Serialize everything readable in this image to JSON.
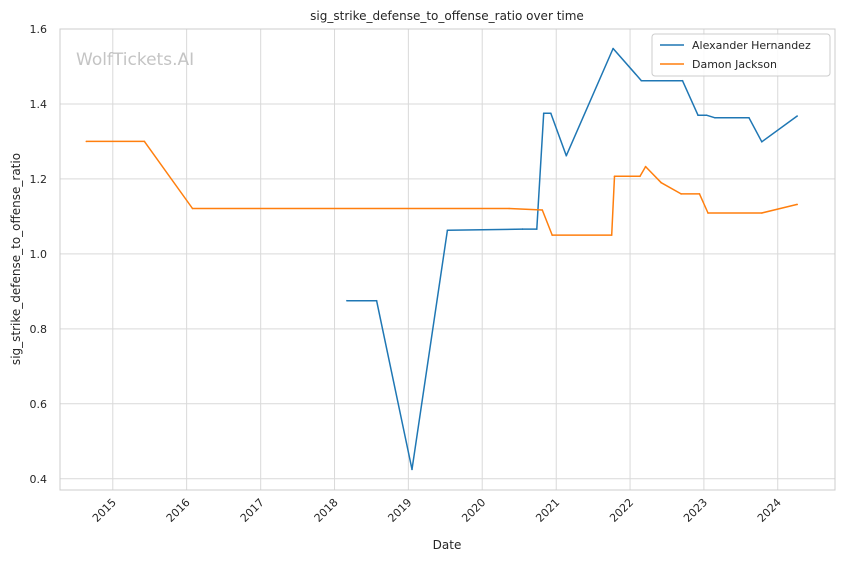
{
  "chart_data": {
    "type": "line",
    "title": "sig_strike_defense_to_offense_ratio over time",
    "xlabel": "Date",
    "ylabel": "sig_strike_defense_to_offense_ratio",
    "watermark": "WolfTickets.AI",
    "x_ticks": [
      "2015",
      "2016",
      "2017",
      "2018",
      "2019",
      "2020",
      "2021",
      "2022",
      "2023",
      "2024"
    ],
    "y_ticks": [
      "0.4",
      "0.6",
      "0.8",
      "1.0",
      "1.2",
      "1.4",
      "1.6"
    ],
    "ylim": [
      0.37,
      1.6
    ],
    "xlim": [
      "2014-04-15",
      "2024-10-10"
    ],
    "grid": true,
    "legend_position": "top-right",
    "series": [
      {
        "name": "Alexander Hernandez",
        "color": "#1f77b4",
        "points": [
          [
            "2018-03-03",
            0.875
          ],
          [
            "2018-07-28",
            0.875
          ],
          [
            "2019-01-19",
            0.425
          ],
          [
            "2019-07-13",
            1.063
          ],
          [
            "2020-07-18",
            1.066
          ],
          [
            "2020-09-27",
            1.066
          ],
          [
            "2020-10-31",
            1.375
          ],
          [
            "2020-12-05",
            1.375
          ],
          [
            "2021-02-20",
            1.262
          ],
          [
            "2021-10-09",
            1.548
          ],
          [
            "2022-02-26",
            1.462
          ],
          [
            "2022-09-17",
            1.462
          ],
          [
            "2022-12-03",
            1.37
          ],
          [
            "2023-01-14",
            1.37
          ],
          [
            "2023-02-25",
            1.363
          ],
          [
            "2023-08-12",
            1.363
          ],
          [
            "2023-10-14",
            1.299
          ],
          [
            "2024-04-06",
            1.368
          ]
        ]
      },
      {
        "name": "Damon Jackson",
        "color": "#ff7f0e",
        "points": [
          [
            "2014-08-23",
            1.3
          ],
          [
            "2015-06-06",
            1.3
          ],
          [
            "2016-01-30",
            1.121
          ],
          [
            "2020-05-13",
            1.121
          ],
          [
            "2020-10-24",
            1.117
          ],
          [
            "2020-12-12",
            1.05
          ],
          [
            "2021-10-02",
            1.05
          ],
          [
            "2021-10-16",
            1.207
          ],
          [
            "2022-02-19",
            1.207
          ],
          [
            "2022-03-19",
            1.233
          ],
          [
            "2022-06-04",
            1.19
          ],
          [
            "2022-09-10",
            1.16
          ],
          [
            "2022-12-10",
            1.16
          ],
          [
            "2023-01-21",
            1.109
          ],
          [
            "2023-10-14",
            1.109
          ],
          [
            "2024-04-06",
            1.132
          ]
        ]
      }
    ]
  }
}
